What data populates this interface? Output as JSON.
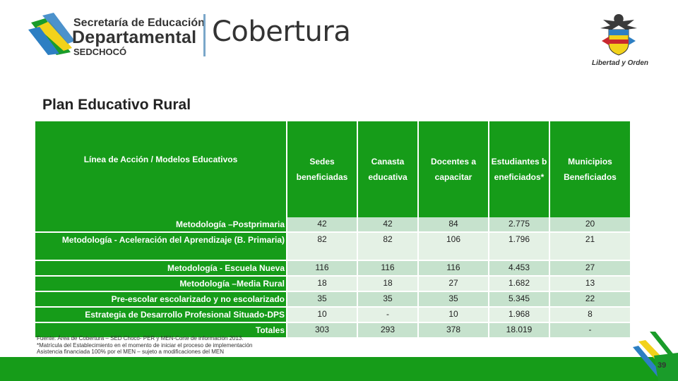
{
  "header": {
    "org_line1": "Secretaría de Educación",
    "org_line2": "Departamental",
    "org_line3": "SEDCHOCÓ",
    "section": "Cobertura",
    "crest_motto": "Libertad y Orden"
  },
  "title": "Plan Educativo Rural",
  "table": {
    "headers": [
      "Línea de Acción / Modelos Educativos",
      "Sedes beneficiadas",
      "Canasta educativa",
      "Docentes a capacitar",
      "Estudiantes beneficiados*",
      "Municipios Beneficiados"
    ],
    "rows": [
      {
        "label": "Metodología –Postprimaria",
        "cells": [
          "42",
          "42",
          "84",
          "2.775",
          "20"
        ]
      },
      {
        "label": "Metodología - Aceleración del Aprendizaje (B. Primaria)",
        "cells": [
          "82",
          "82",
          "106",
          "1.796",
          "21"
        ]
      },
      {
        "label": "Metodología - Escuela Nueva",
        "cells": [
          "116",
          "116",
          "116",
          "4.453",
          "27"
        ]
      },
      {
        "label": "Metodología –Media Rural",
        "cells": [
          "18",
          "18",
          "27",
          "1.682",
          "13"
        ]
      },
      {
        "label": "Pre-escolar escolarizado y no escolarizado",
        "cells": [
          "35",
          "35",
          "35",
          "5.345",
          "22"
        ]
      },
      {
        "label": "Estrategia de Desarrollo Profesional Situado-DPS",
        "cells": [
          "10",
          "-",
          "10",
          "1.968",
          "8"
        ]
      },
      {
        "label": "Totales",
        "cells": [
          "303",
          "293",
          "378",
          "18.019",
          "-"
        ]
      }
    ]
  },
  "footnotes": [
    "Fuente: Área de Cobertura – SED Chocó- PER y MEN-Corte de información 2013.",
    "*Matrícula del Establecimiento en el momento de iniciar el proceso de implementación",
    "Asistencia financiada 100% por el MEN – sujeto a modificaciones del MEN"
  ],
  "page_number": "39",
  "colors": {
    "accent_green": "#169c19",
    "row_dark": "#c6e2cd",
    "row_light": "#e4f1e5"
  }
}
